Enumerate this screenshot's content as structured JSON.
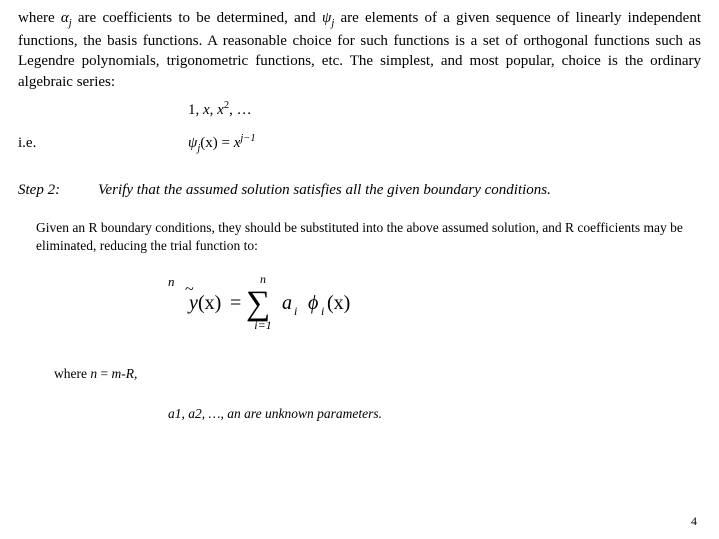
{
  "para1_pre": "where ",
  "para1_alpha": "α",
  "para1_alpha_sub": "j",
  "para1_mid1": " are coefficients to be determined, and ",
  "para1_psi": "ψ",
  "para1_psi_sub": "j",
  "para1_post": " are elements of a given sequence of linearly independent functions, the basis functions.  A reasonable choice for such functions is a set of orthogonal functions such as Legendre polynomials, trigonometric functions, etc.  The simplest, and most popular, choice is the ordinary algebraic series:",
  "series_1": "1, ",
  "series_x": "x",
  "series_sep": ", ",
  "series_x2": "x",
  "series_sq": "2",
  "series_tail": ", …",
  "ie_label": "i.e.",
  "ie_psi": "ψ",
  "ie_j": "j",
  "ie_x_arg": "(x)",
  "ie_eq": " = ",
  "ie_xvar": "x",
  "ie_exp": "j−1",
  "step_label": "Step 2:",
  "step_text": "Verify that the assumed solution satisfies all the given boundary conditions.",
  "given_text": "Given an R boundary conditions, they should be substituted into the above assumed solution, and R coefficients may be eliminated, reducing the trial function to:",
  "formula": {
    "y": "y",
    "arg": "(x)",
    "eq": "=",
    "n": "n",
    "ieq1": "i=1",
    "a": "a",
    "ai": "i",
    "phi": "ϕ",
    "phii": "i",
    "xarg": "(x)"
  },
  "where_pre": "where ",
  "where_n": "n",
  "where_eq": " = ",
  "where_mR": "m-R,",
  "params_line": "a1, a2, …, an are unknown parameters.",
  "page_number": "4",
  "colors": {
    "text": "#000000",
    "background": "#ffffff"
  }
}
